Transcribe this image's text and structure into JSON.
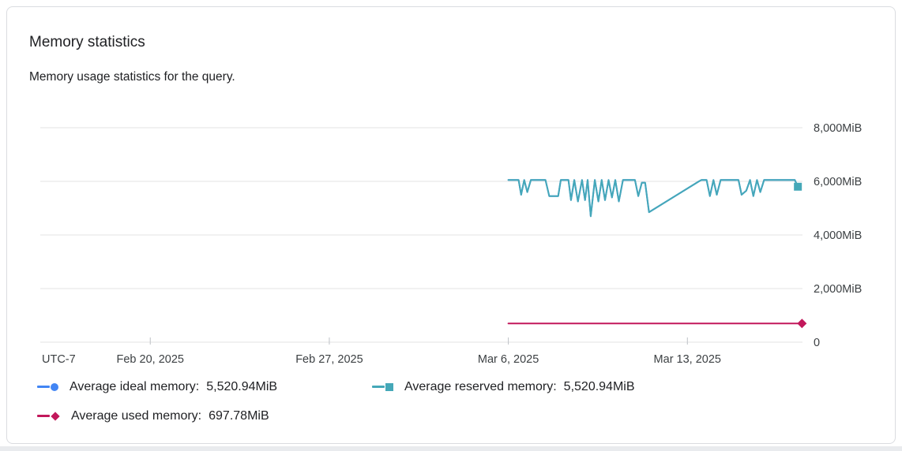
{
  "card": {
    "title": "Memory statistics",
    "subtitle": "Memory usage statistics for the query."
  },
  "chart_data": {
    "type": "line",
    "title": "Memory statistics",
    "unit": "MiB",
    "ylim": [
      0,
      8000
    ],
    "grid": true,
    "legend_position": "bottom",
    "y_ticks": [
      {
        "value": 8000,
        "label": "8,000MiB"
      },
      {
        "value": 6000,
        "label": "6,000MiB"
      },
      {
        "value": 4000,
        "label": "4,000MiB"
      },
      {
        "value": 2000,
        "label": "2,000MiB"
      },
      {
        "value": 0,
        "label": "0"
      }
    ],
    "x_axis": {
      "timezone_label": "UTC-7",
      "domain_days": [
        -18.3,
        11.5
      ],
      "reference_date": "Mar 6, 2025",
      "ticks": [
        {
          "day": -14,
          "label": "Feb 20, 2025"
        },
        {
          "day": -7,
          "label": "Feb 27, 2025"
        },
        {
          "day": 0,
          "label": "Mar 6, 2025"
        },
        {
          "day": 7,
          "label": "Mar 13, 2025"
        }
      ]
    },
    "series": [
      {
        "name": "Average ideal memory",
        "legend_label": "Average ideal memory:",
        "legend_value": "5,520.94MiB",
        "average_mib": 5520.94,
        "color": "#4285f4",
        "marker": "circle",
        "points": [
          [
            0.0,
            6050
          ],
          [
            0.4,
            6050
          ],
          [
            0.5,
            5500
          ],
          [
            0.62,
            6050
          ],
          [
            0.74,
            5600
          ],
          [
            0.88,
            6050
          ],
          [
            1.45,
            6050
          ],
          [
            1.6,
            5450
          ],
          [
            1.95,
            5450
          ],
          [
            2.05,
            6050
          ],
          [
            2.35,
            6050
          ],
          [
            2.45,
            5300
          ],
          [
            2.58,
            6050
          ],
          [
            2.72,
            5250
          ],
          [
            2.88,
            6050
          ],
          [
            3.0,
            5300
          ],
          [
            3.1,
            6050
          ],
          [
            3.22,
            4700
          ],
          [
            3.38,
            6050
          ],
          [
            3.52,
            5250
          ],
          [
            3.65,
            6050
          ],
          [
            3.78,
            5300
          ],
          [
            3.92,
            6050
          ],
          [
            4.05,
            5400
          ],
          [
            4.18,
            6050
          ],
          [
            4.32,
            5250
          ],
          [
            4.48,
            6050
          ],
          [
            4.95,
            6050
          ],
          [
            5.08,
            5450
          ],
          [
            5.22,
            5950
          ],
          [
            5.35,
            5950
          ],
          [
            5.5,
            4850
          ],
          [
            7.45,
            6000
          ],
          [
            7.55,
            6050
          ],
          [
            7.75,
            6050
          ],
          [
            7.88,
            5450
          ],
          [
            8.02,
            6050
          ],
          [
            8.15,
            5500
          ],
          [
            8.3,
            6050
          ],
          [
            9.0,
            6050
          ],
          [
            9.12,
            5500
          ],
          [
            9.3,
            5650
          ],
          [
            9.45,
            6050
          ],
          [
            9.58,
            5450
          ],
          [
            9.72,
            6050
          ],
          [
            9.85,
            5600
          ],
          [
            10.0,
            6050
          ],
          [
            11.2,
            6050
          ],
          [
            11.32,
            5800
          ]
        ]
      },
      {
        "name": "Average reserved memory",
        "legend_label": "Average reserved memory:",
        "legend_value": "5,520.94MiB",
        "average_mib": 5520.94,
        "color": "#45a8b8",
        "marker": "square",
        "points": [
          [
            0.0,
            6050
          ],
          [
            0.4,
            6050
          ],
          [
            0.5,
            5500
          ],
          [
            0.62,
            6050
          ],
          [
            0.74,
            5600
          ],
          [
            0.88,
            6050
          ],
          [
            1.45,
            6050
          ],
          [
            1.6,
            5450
          ],
          [
            1.95,
            5450
          ],
          [
            2.05,
            6050
          ],
          [
            2.35,
            6050
          ],
          [
            2.45,
            5300
          ],
          [
            2.58,
            6050
          ],
          [
            2.72,
            5250
          ],
          [
            2.88,
            6050
          ],
          [
            3.0,
            5300
          ],
          [
            3.1,
            6050
          ],
          [
            3.22,
            4700
          ],
          [
            3.38,
            6050
          ],
          [
            3.52,
            5250
          ],
          [
            3.65,
            6050
          ],
          [
            3.78,
            5300
          ],
          [
            3.92,
            6050
          ],
          [
            4.05,
            5400
          ],
          [
            4.18,
            6050
          ],
          [
            4.32,
            5250
          ],
          [
            4.48,
            6050
          ],
          [
            4.95,
            6050
          ],
          [
            5.08,
            5450
          ],
          [
            5.22,
            5950
          ],
          [
            5.35,
            5950
          ],
          [
            5.5,
            4850
          ],
          [
            7.45,
            6000
          ],
          [
            7.55,
            6050
          ],
          [
            7.75,
            6050
          ],
          [
            7.88,
            5450
          ],
          [
            8.02,
            6050
          ],
          [
            8.15,
            5500
          ],
          [
            8.3,
            6050
          ],
          [
            9.0,
            6050
          ],
          [
            9.12,
            5500
          ],
          [
            9.3,
            5650
          ],
          [
            9.45,
            6050
          ],
          [
            9.58,
            5450
          ],
          [
            9.72,
            6050
          ],
          [
            9.85,
            5600
          ],
          [
            10.0,
            6050
          ],
          [
            11.2,
            6050
          ],
          [
            11.32,
            5800
          ]
        ]
      },
      {
        "name": "Average used memory",
        "legend_label": "Average used memory:",
        "legend_value": "697.78MiB",
        "average_mib": 697.78,
        "color": "#c2185b",
        "marker": "diamond",
        "points": [
          [
            0.0,
            700
          ],
          [
            11.48,
            700
          ]
        ]
      }
    ],
    "colors": {
      "gridline": "#e3e3e3",
      "tick": "#bdc1c6",
      "axis_text": "#3c4043"
    }
  }
}
